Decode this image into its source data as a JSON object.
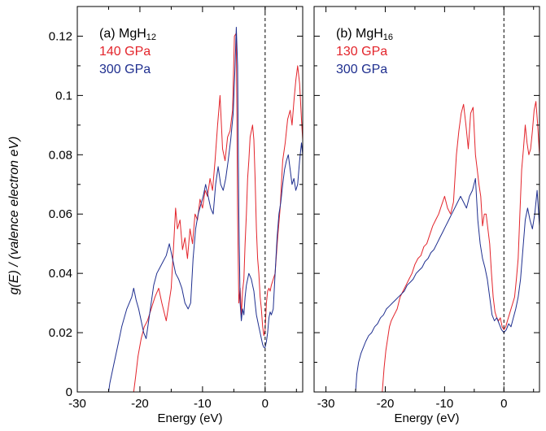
{
  "colors": {
    "red": "#e3242b",
    "blue": "#1f2f8f"
  },
  "ylabel": "g(E) / (valence electron eV)",
  "chart_data": [
    {
      "type": "line",
      "panel_label": "(a) MgH",
      "panel_subscript": "12",
      "xlabel": "Energy (eV)",
      "xlim": [
        -30,
        6
      ],
      "ylim": [
        0,
        0.13
      ],
      "xticks": [
        -30,
        -20,
        -10,
        0
      ],
      "yticks": [
        0,
        0.02,
        0.04,
        0.06,
        0.08,
        0.1,
        0.12
      ],
      "ytick_labels": [
        "0",
        "0.02",
        "0.04",
        "0.06",
        "0.08",
        "0.1",
        "0.12"
      ],
      "zero_line": 0,
      "series": [
        {
          "name": "140 GPa",
          "color": "#e3242b",
          "x": [
            -21,
            -20.7,
            -20.3,
            -19.8,
            -19.3,
            -18.8,
            -18.2,
            -17.6,
            -17.0,
            -16.5,
            -15.8,
            -15.0,
            -14.6,
            -14.3,
            -14.0,
            -13.6,
            -13.2,
            -12.8,
            -12.4,
            -12.0,
            -11.6,
            -11.2,
            -10.8,
            -10.4,
            -10.0,
            -9.6,
            -9.2,
            -8.8,
            -8.4,
            -8.0,
            -7.6,
            -7.2,
            -6.8,
            -6.4,
            -6.0,
            -5.6,
            -5.2,
            -4.9,
            -4.6,
            -4.4,
            -4.2,
            -4.0,
            -3.8,
            -3.6,
            -3.4,
            -3.2,
            -3.0,
            -2.8,
            -2.6,
            -2.4,
            -2.2,
            -2.0,
            -1.8,
            -1.6,
            -1.4,
            -1.2,
            -1.0,
            -0.8,
            -0.6,
            -0.4,
            -0.2,
            0.0,
            0.2,
            0.4,
            0.6,
            0.8,
            1.0,
            1.3,
            1.6,
            2.0,
            2.4,
            2.8,
            3.2,
            3.6,
            4.0,
            4.3,
            4.6,
            4.9,
            5.2,
            5.5,
            5.8,
            6.0
          ],
          "y": [
            0,
            0.005,
            0.012,
            0.018,
            0.022,
            0.024,
            0.028,
            0.032,
            0.035,
            0.03,
            0.024,
            0.035,
            0.05,
            0.062,
            0.055,
            0.058,
            0.048,
            0.052,
            0.045,
            0.055,
            0.05,
            0.06,
            0.058,
            0.065,
            0.062,
            0.068,
            0.066,
            0.072,
            0.068,
            0.078,
            0.09,
            0.1,
            0.082,
            0.078,
            0.086,
            0.088,
            0.095,
            0.12,
            0.121,
            0.06,
            0.03,
            0.035,
            0.026,
            0.034,
            0.038,
            0.05,
            0.06,
            0.072,
            0.078,
            0.086,
            0.088,
            0.09,
            0.085,
            0.072,
            0.055,
            0.045,
            0.04,
            0.032,
            0.028,
            0.022,
            0.019,
            0.021,
            0.03,
            0.034,
            0.035,
            0.034,
            0.036,
            0.038,
            0.04,
            0.052,
            0.062,
            0.078,
            0.084,
            0.092,
            0.095,
            0.09,
            0.098,
            0.105,
            0.11,
            0.104,
            0.092,
            0.085
          ]
        },
        {
          "name": "300 GPa",
          "color": "#1f2f8f",
          "x": [
            -25,
            -24.8,
            -24.5,
            -24.1,
            -23.7,
            -23.3,
            -22.9,
            -22.5,
            -22.1,
            -21.7,
            -21.3,
            -21.0,
            -20.6,
            -20.2,
            -19.8,
            -19.4,
            -19.0,
            -18.6,
            -18.2,
            -17.8,
            -17.3,
            -16.8,
            -16.3,
            -15.8,
            -15.3,
            -14.8,
            -14.3,
            -13.8,
            -13.3,
            -12.8,
            -12.3,
            -11.9,
            -11.5,
            -11.1,
            -10.7,
            -10.3,
            -9.9,
            -9.5,
            -9.1,
            -8.7,
            -8.3,
            -7.9,
            -7.5,
            -7.1,
            -6.7,
            -6.3,
            -5.9,
            -5.5,
            -5.1,
            -4.8,
            -4.6,
            -4.4,
            -4.2,
            -4.0,
            -3.8,
            -3.6,
            -3.4,
            -3.2,
            -3.0,
            -2.8,
            -2.6,
            -2.4,
            -2.2,
            -2.0,
            -1.8,
            -1.6,
            -1.4,
            -1.2,
            -1.0,
            -0.8,
            -0.6,
            -0.4,
            -0.2,
            0.0,
            0.2,
            0.4,
            0.6,
            0.8,
            1.0,
            1.3,
            1.6,
            1.9,
            2.2,
            2.5,
            2.8,
            3.1,
            3.4,
            3.7,
            4.0,
            4.3,
            4.6,
            4.9,
            5.2,
            5.5,
            5.8,
            6.0
          ],
          "y": [
            0,
            0.003,
            0.006,
            0.01,
            0.014,
            0.018,
            0.022,
            0.025,
            0.028,
            0.03,
            0.032,
            0.035,
            0.031,
            0.028,
            0.024,
            0.02,
            0.018,
            0.024,
            0.03,
            0.036,
            0.04,
            0.042,
            0.044,
            0.046,
            0.05,
            0.045,
            0.04,
            0.038,
            0.035,
            0.03,
            0.028,
            0.03,
            0.045,
            0.055,
            0.06,
            0.063,
            0.066,
            0.07,
            0.066,
            0.062,
            0.06,
            0.07,
            0.076,
            0.07,
            0.068,
            0.072,
            0.078,
            0.085,
            0.094,
            0.11,
            0.123,
            0.11,
            0.06,
            0.03,
            0.024,
            0.028,
            0.026,
            0.032,
            0.036,
            0.038,
            0.04,
            0.039,
            0.038,
            0.036,
            0.034,
            0.03,
            0.026,
            0.024,
            0.022,
            0.02,
            0.018,
            0.016,
            0.015,
            0.015,
            0.017,
            0.02,
            0.025,
            0.027,
            0.026,
            0.028,
            0.04,
            0.052,
            0.06,
            0.064,
            0.07,
            0.075,
            0.078,
            0.08,
            0.075,
            0.07,
            0.072,
            0.068,
            0.07,
            0.078,
            0.084,
            0.08
          ]
        }
      ]
    },
    {
      "type": "line",
      "panel_label": "(b) MgH",
      "panel_subscript": "16",
      "xlabel": "Energy (eV)",
      "xlim": [
        -32,
        6
      ],
      "ylim": [
        0,
        0.13
      ],
      "xticks": [
        -30,
        -20,
        -10,
        0
      ],
      "yticks": [
        0,
        0.02,
        0.04,
        0.06,
        0.08,
        0.1,
        0.12
      ],
      "zero_line": 0,
      "series": [
        {
          "name": "130 GPa",
          "color": "#e3242b",
          "x": [
            -20.5,
            -20.2,
            -19.9,
            -19.6,
            -19.3,
            -19.0,
            -18.5,
            -18.0,
            -17.5,
            -17.0,
            -16.5,
            -16.0,
            -15.5,
            -15.0,
            -14.5,
            -14.0,
            -13.5,
            -13.0,
            -12.5,
            -12.0,
            -11.5,
            -11.0,
            -10.5,
            -10.0,
            -9.5,
            -9.0,
            -8.5,
            -8.0,
            -7.6,
            -7.2,
            -6.8,
            -6.4,
            -6.0,
            -5.6,
            -5.2,
            -4.8,
            -4.5,
            -4.2,
            -3.9,
            -3.6,
            -3.3,
            -3.0,
            -2.7,
            -2.4,
            -2.1,
            -1.8,
            -1.5,
            -1.2,
            -0.9,
            -0.6,
            -0.3,
            0.0,
            0.3,
            0.6,
            0.9,
            1.2,
            1.5,
            1.8,
            2.1,
            2.4,
            2.7,
            3.0,
            3.3,
            3.6,
            3.9,
            4.2,
            4.5,
            4.8,
            5.1,
            5.4,
            5.7,
            6.0
          ],
          "y": [
            0,
            0.008,
            0.014,
            0.018,
            0.022,
            0.024,
            0.026,
            0.028,
            0.032,
            0.034,
            0.036,
            0.038,
            0.04,
            0.043,
            0.045,
            0.046,
            0.049,
            0.05,
            0.053,
            0.056,
            0.058,
            0.06,
            0.063,
            0.066,
            0.062,
            0.06,
            0.064,
            0.08,
            0.088,
            0.094,
            0.097,
            0.09,
            0.082,
            0.094,
            0.096,
            0.08,
            0.075,
            0.07,
            0.066,
            0.056,
            0.06,
            0.06,
            0.055,
            0.05,
            0.04,
            0.032,
            0.027,
            0.025,
            0.024,
            0.025,
            0.022,
            0.021,
            0.022,
            0.024,
            0.026,
            0.028,
            0.03,
            0.032,
            0.038,
            0.045,
            0.06,
            0.075,
            0.082,
            0.09,
            0.084,
            0.08,
            0.082,
            0.088,
            0.095,
            0.098,
            0.09,
            0.08
          ]
        },
        {
          "name": "300 GPa",
          "color": "#1f2f8f",
          "x": [
            -25,
            -24.8,
            -24.5,
            -24.1,
            -23.7,
            -23.3,
            -22.8,
            -22.3,
            -21.8,
            -21.3,
            -20.8,
            -20.3,
            -19.8,
            -19.3,
            -18.8,
            -18.3,
            -17.8,
            -17.3,
            -16.8,
            -16.3,
            -15.8,
            -15.3,
            -14.8,
            -14.3,
            -13.8,
            -13.3,
            -12.8,
            -12.3,
            -11.8,
            -11.3,
            -10.8,
            -10.3,
            -9.8,
            -9.3,
            -8.8,
            -8.3,
            -7.8,
            -7.3,
            -6.8,
            -6.3,
            -5.8,
            -5.3,
            -4.8,
            -4.4,
            -4.0,
            -3.6,
            -3.2,
            -2.8,
            -2.4,
            -2.0,
            -1.6,
            -1.2,
            -0.8,
            -0.4,
            0.0,
            0.4,
            0.8,
            1.2,
            1.6,
            2.0,
            2.4,
            2.8,
            3.2,
            3.6,
            4.0,
            4.4,
            4.8,
            5.2,
            5.6,
            6.0
          ],
          "y": [
            0,
            0.006,
            0.01,
            0.013,
            0.015,
            0.017,
            0.019,
            0.02,
            0.022,
            0.023,
            0.025,
            0.026,
            0.028,
            0.029,
            0.03,
            0.031,
            0.032,
            0.033,
            0.034,
            0.036,
            0.037,
            0.038,
            0.04,
            0.041,
            0.042,
            0.044,
            0.045,
            0.047,
            0.048,
            0.05,
            0.052,
            0.054,
            0.056,
            0.058,
            0.06,
            0.062,
            0.064,
            0.066,
            0.064,
            0.062,
            0.066,
            0.068,
            0.072,
            0.058,
            0.05,
            0.045,
            0.042,
            0.038,
            0.032,
            0.026,
            0.024,
            0.025,
            0.023,
            0.021,
            0.02,
            0.021,
            0.023,
            0.022,
            0.025,
            0.028,
            0.032,
            0.038,
            0.048,
            0.058,
            0.062,
            0.058,
            0.055,
            0.06,
            0.068,
            0.056
          ]
        }
      ]
    }
  ]
}
